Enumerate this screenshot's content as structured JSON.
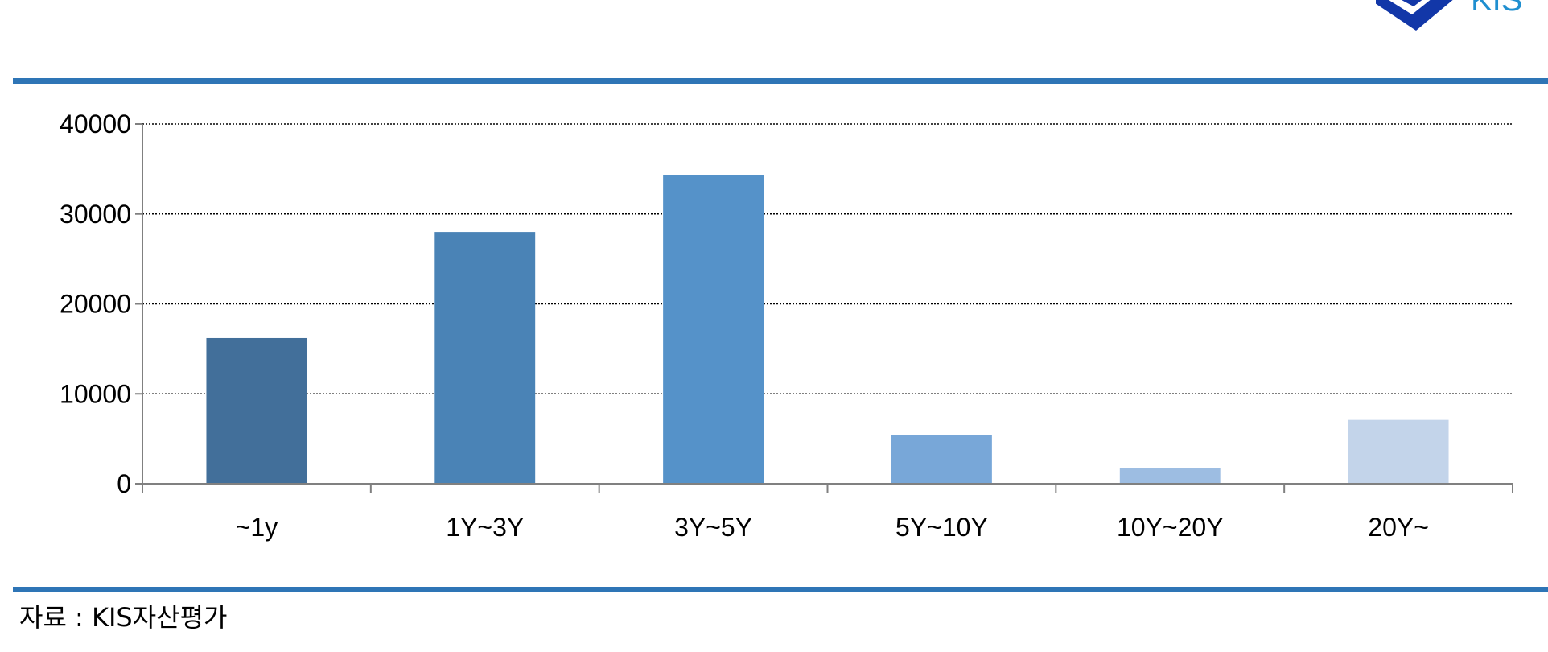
{
  "logo": {
    "icon": "kis-diamond-logo-icon",
    "text": "KIS",
    "color": "#1f8fd0"
  },
  "source": "자료 : KIS자산평가",
  "colors": {
    "rule": "#2e75b6"
  },
  "chart_data": {
    "type": "bar",
    "categories": [
      "~1y",
      "1Y~3Y",
      "3Y~5Y",
      "5Y~10Y",
      "10Y~20Y",
      "20Y~"
    ],
    "values": [
      16200,
      28000,
      34300,
      5400,
      1700,
      7100
    ],
    "colors": [
      "#426f9a",
      "#4a83b6",
      "#5592c9",
      "#78a7d8",
      "#9dbde2",
      "#c3d4ea"
    ],
    "title": "",
    "xlabel": "",
    "ylabel": "",
    "ylim": [
      0,
      40000
    ],
    "yticks": [
      0,
      10000,
      20000,
      30000,
      40000
    ],
    "grid": true,
    "grid_style": "dotted",
    "legend": "none"
  }
}
